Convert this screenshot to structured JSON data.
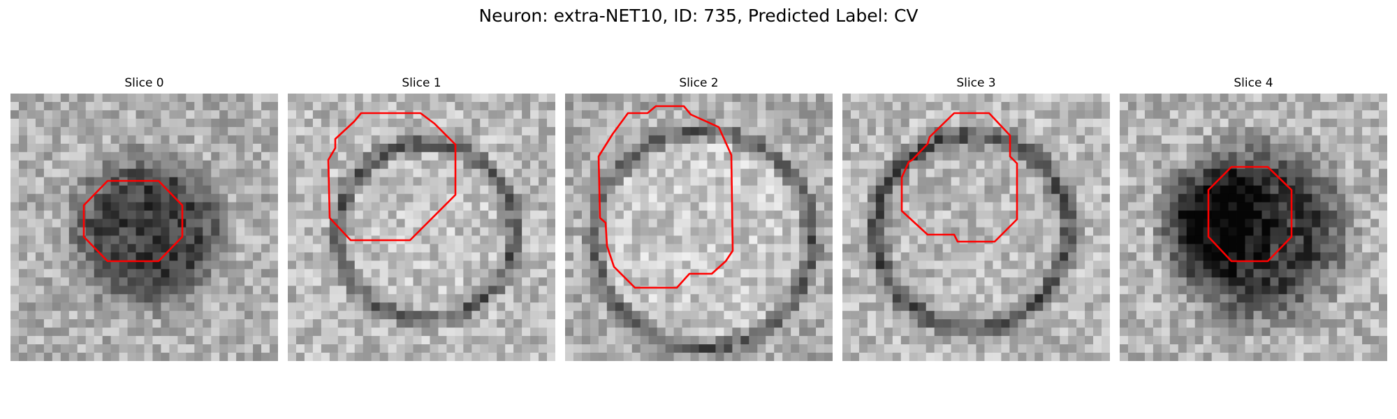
{
  "figure": {
    "title": "Neuron: extra-NET10, ID: 735, Predicted Label: CV"
  },
  "panels": [
    {
      "title": "Slice 0",
      "seed": 11,
      "contour_color": "#ff0000"
    },
    {
      "title": "Slice 1",
      "seed": 23,
      "contour_color": "#ff0000"
    },
    {
      "title": "Slice 2",
      "seed": 37,
      "contour_color": "#ff0000"
    },
    {
      "title": "Slice 3",
      "seed": 51,
      "contour_color": "#ff0000"
    },
    {
      "title": "Slice 4",
      "seed": 67,
      "contour_color": "#ff0000"
    }
  ],
  "colormap": "gray"
}
